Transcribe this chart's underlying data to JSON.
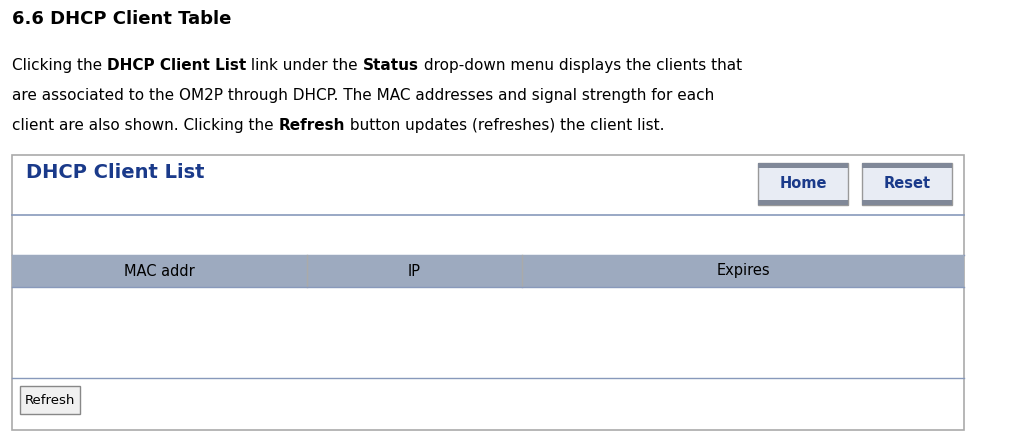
{
  "title": "6.6 DHCP Client Table",
  "line1": [
    {
      "text": "Clicking the ",
      "bold": false
    },
    {
      "text": "DHCP Client List",
      "bold": true
    },
    {
      "text": " link under the ",
      "bold": false
    },
    {
      "text": "Status",
      "bold": true
    },
    {
      "text": " drop-down menu displays the clients that",
      "bold": false
    }
  ],
  "line2": [
    {
      "text": "are associated to the OM2P through DHCP. The MAC addresses and signal strength for each",
      "bold": false
    }
  ],
  "line3": [
    {
      "text": "client are also shown. Clicking the ",
      "bold": false
    },
    {
      "text": "Refresh",
      "bold": true
    },
    {
      "text": " button updates (refreshes) the client list.",
      "bold": false
    }
  ],
  "panel_title": "DHCP Client List",
  "panel_title_color": "#1a3a8a",
  "panel_bg": "#ffffff",
  "panel_border": "#aaaaaa",
  "header_bg": "#9daabf",
  "header_text_color": "#000000",
  "columns": [
    "MAC addr",
    "IP",
    "Expires"
  ],
  "button_labels": [
    "Home",
    "Reset"
  ],
  "button_text_color": "#1a3a8a",
  "button_bg": "#e8ecf4",
  "button_top_bar": "#808898",
  "button_border": "#999999",
  "refresh_label": "Refresh",
  "separator_color": "#8899bb",
  "background_color": "#ffffff",
  "title_fontsize": 13,
  "body_fontsize": 11,
  "panel_title_fontsize": 14
}
